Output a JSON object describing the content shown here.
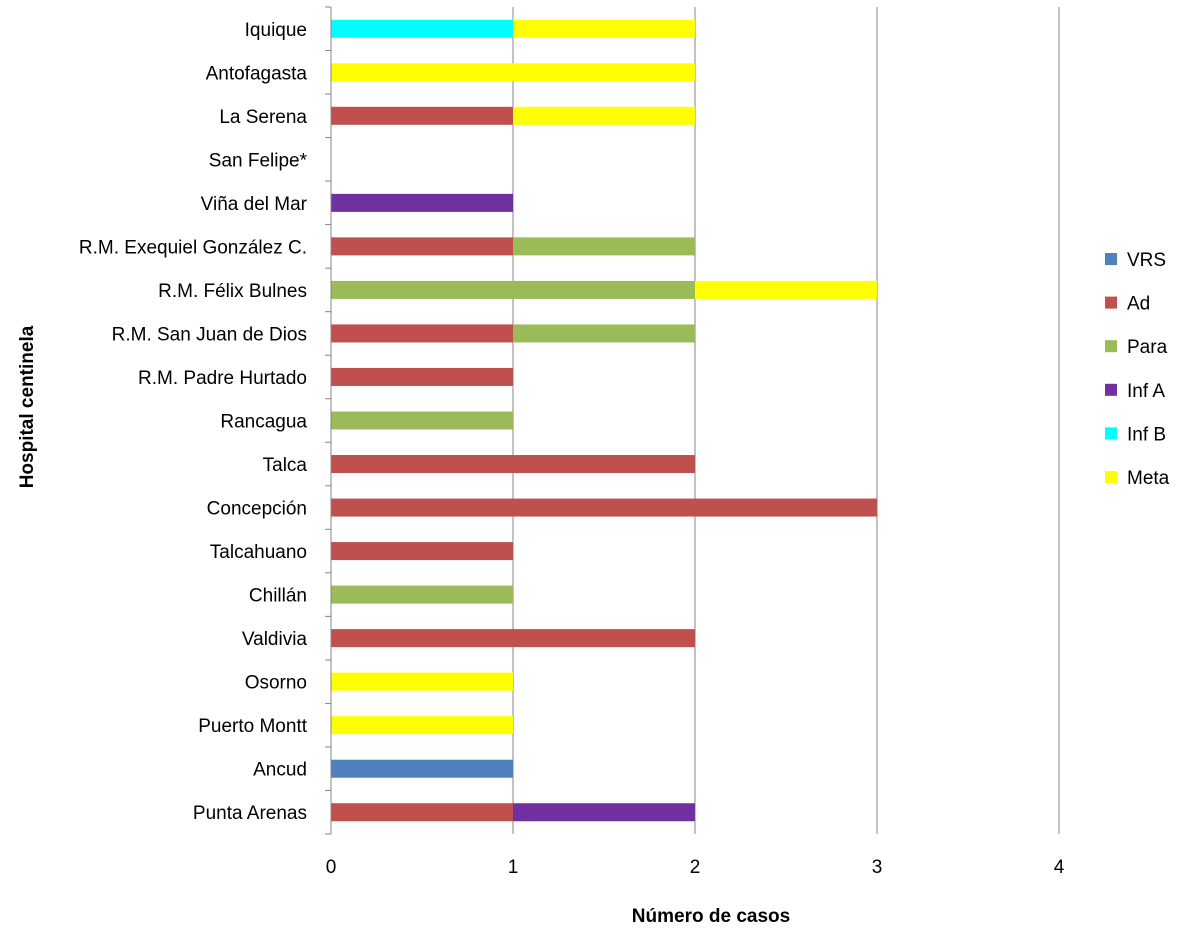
{
  "chart_data": {
    "type": "bar",
    "orientation": "horizontal",
    "stacked": true,
    "categories": [
      "Iquique",
      "Antofagasta",
      "La Serena",
      "San Felipe*",
      "Viña del Mar",
      "R.M. Exequiel González C.",
      "R.M. Félix Bulnes",
      "R.M. San Juan de Dios",
      "R.M. Padre Hurtado",
      "Rancagua",
      "Talca",
      "Concepción",
      "Talcahuano",
      "Chillán",
      "Valdivia",
      "Osorno",
      "Puerto Montt",
      "Ancud",
      "Punta Arenas"
    ],
    "series": [
      {
        "name": "VRS",
        "color": "#4F81BD",
        "values": [
          0,
          0,
          0,
          0,
          0,
          0,
          0,
          0,
          0,
          0,
          0,
          0,
          0,
          0,
          0,
          0,
          0,
          1,
          0
        ]
      },
      {
        "name": "Ad",
        "color": "#C0504D",
        "values": [
          0,
          0,
          1,
          0,
          0,
          1,
          0,
          1,
          1,
          0,
          2,
          3,
          1,
          0,
          2,
          0,
          0,
          0,
          1
        ]
      },
      {
        "name": "Para",
        "color": "#9BBB59",
        "values": [
          0,
          0,
          0,
          0,
          0,
          1,
          2,
          1,
          0,
          1,
          0,
          0,
          0,
          1,
          0,
          0,
          0,
          0,
          0
        ]
      },
      {
        "name": "Inf A",
        "color": "#7030A0",
        "values": [
          0,
          0,
          0,
          0,
          1,
          0,
          0,
          0,
          0,
          0,
          0,
          0,
          0,
          0,
          0,
          0,
          0,
          0,
          1
        ]
      },
      {
        "name": "Inf B",
        "color": "#00FFFF",
        "values": [
          1,
          0,
          0,
          0,
          0,
          0,
          0,
          0,
          0,
          0,
          0,
          0,
          0,
          0,
          0,
          0,
          0,
          0,
          0
        ]
      },
      {
        "name": "Meta",
        "color": "#FFFF00",
        "values": [
          1,
          2,
          1,
          0,
          0,
          0,
          1,
          0,
          0,
          0,
          0,
          0,
          0,
          0,
          0,
          1,
          1,
          0,
          0
        ]
      }
    ],
    "xlabel": "Número de casos",
    "ylabel": "Hospital centinela",
    "xlim": [
      0,
      4
    ],
    "xticks": [
      "0",
      "1",
      "2",
      "3",
      "4"
    ],
    "grid": "vertical major",
    "legend_position": "right"
  }
}
